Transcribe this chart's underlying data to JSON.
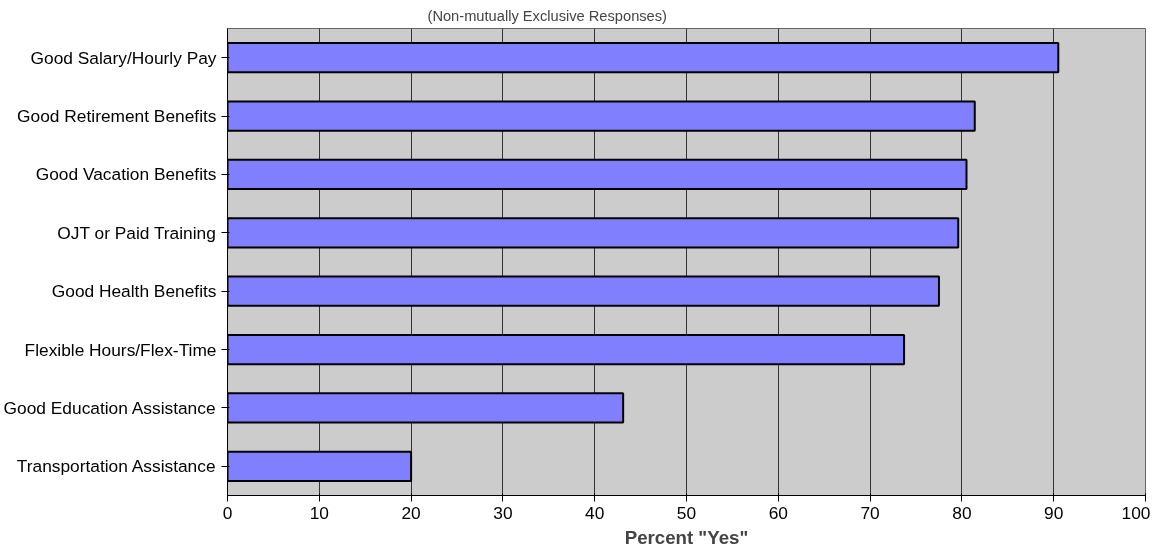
{
  "chart_data": {
    "type": "bar",
    "orientation": "horizontal",
    "title": "(Non-mutually  Exclusive Responses)",
    "xlabel": "Percent \"Yes\"",
    "categories": [
      "Good Salary/Hourly Pay",
      "Good Retirement Benefits",
      "Good Vacation Benefits",
      "OJT or Paid Training",
      "Good Health Benefits",
      "Flexible Hours/Flex-Time",
      "Good Education Assistance",
      "Transportation Assistance"
    ],
    "values": [
      90.5,
      81.4,
      80.5,
      79.6,
      77.5,
      73.7,
      43.1,
      20
    ],
    "color": "#8080ff",
    "xlim": [
      0,
      100
    ],
    "xticks": [
      0,
      10,
      20,
      30,
      40,
      50,
      60,
      70,
      80,
      90,
      100
    ],
    "grid": "x"
  }
}
